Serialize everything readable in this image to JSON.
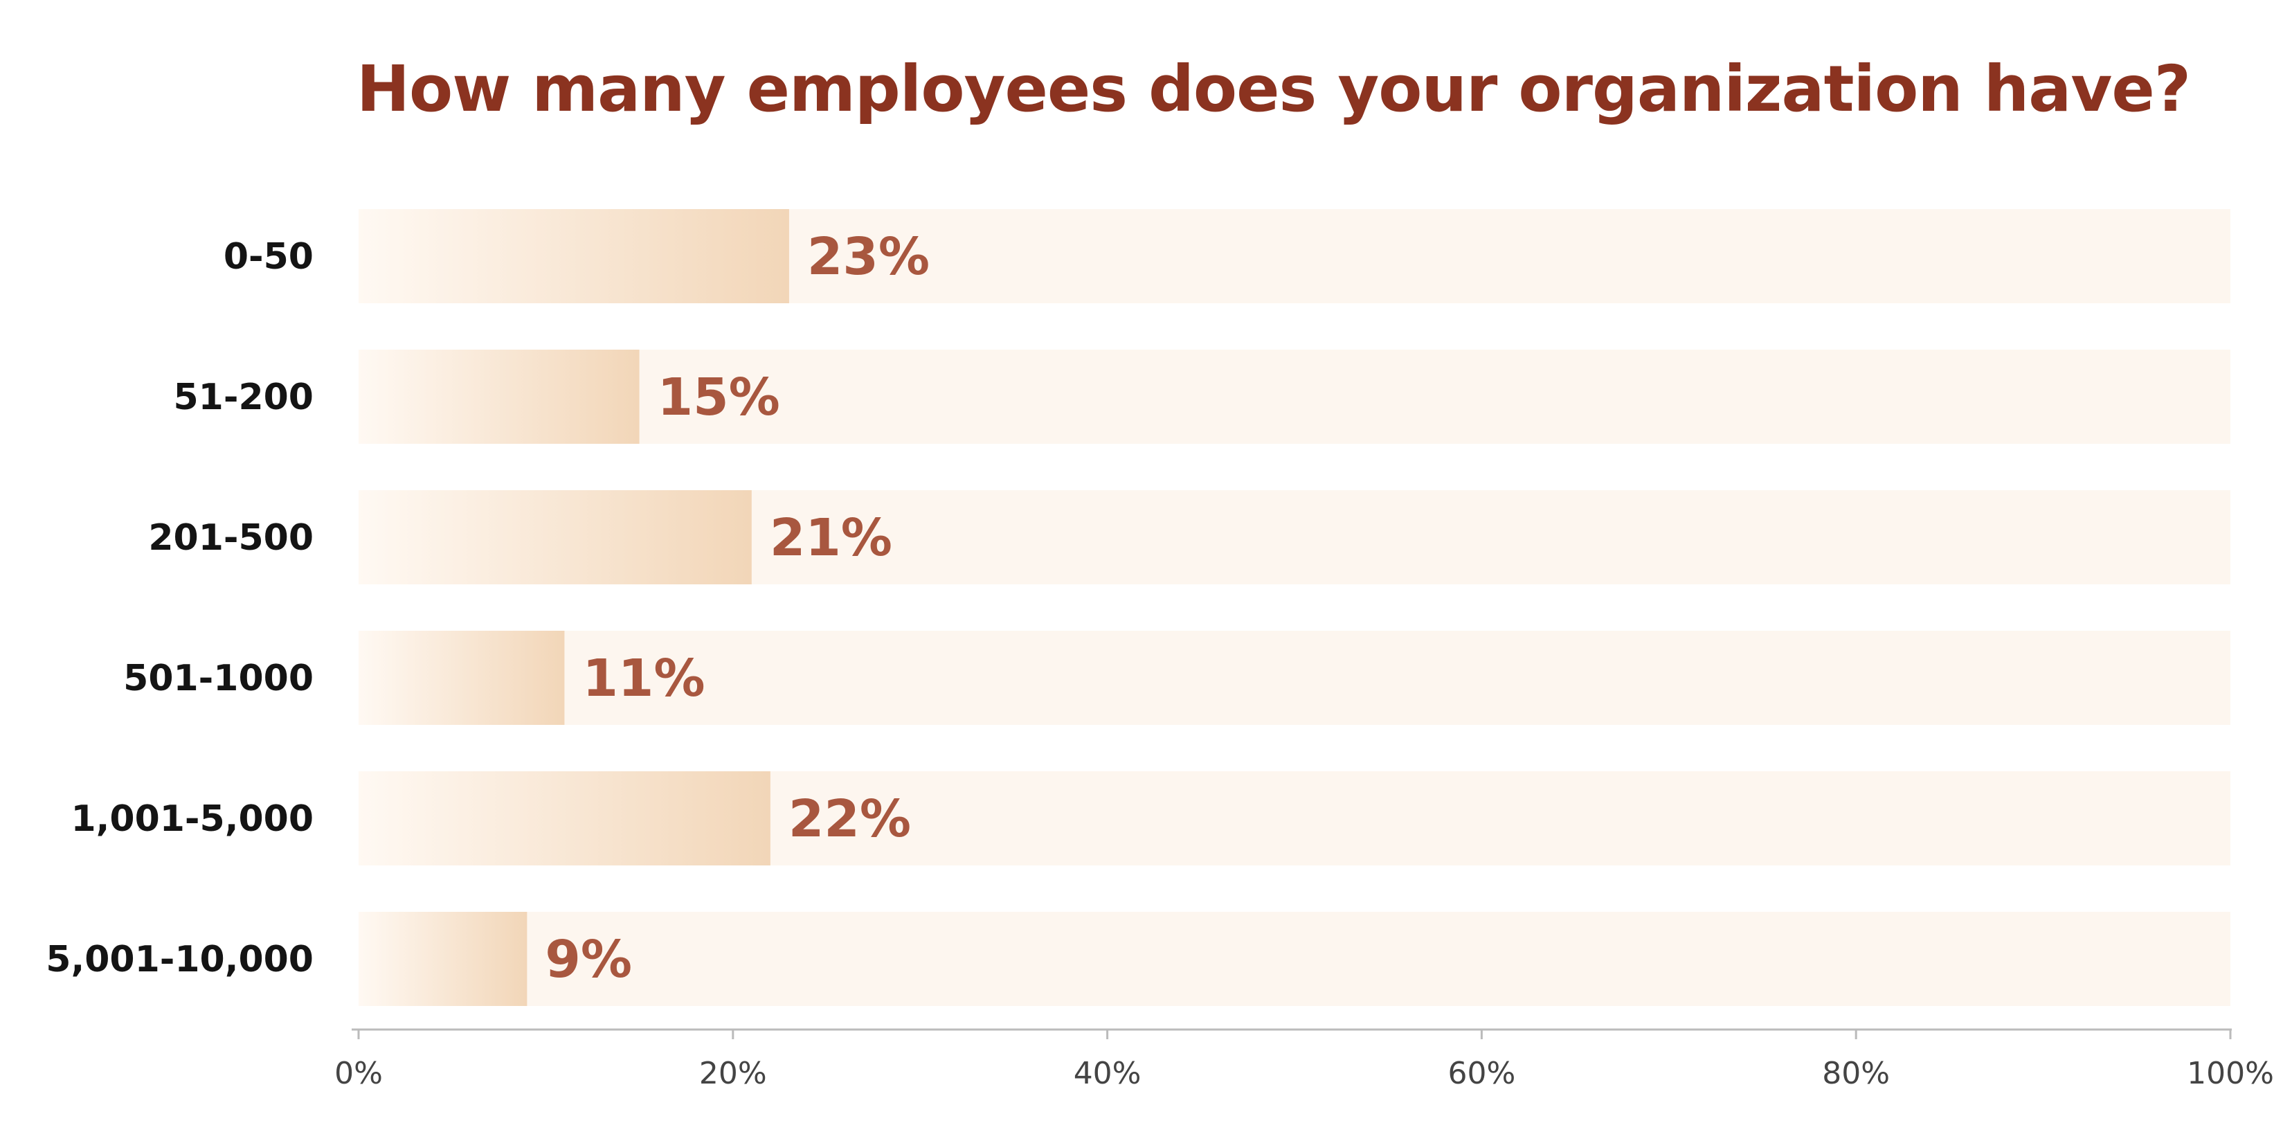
{
  "colors": {
    "title": "#8B3320",
    "value_label": "#A8573F",
    "track": "#FDF6EF",
    "bar_start": "#FFF9F3",
    "bar_end": "#F2D6B8",
    "axis": "#BBBBBB"
  },
  "chart_data": {
    "type": "bar",
    "orientation": "horizontal",
    "title": "How many employees does your organization have?",
    "xlabel": "",
    "ylabel": "",
    "categories": [
      "0-50",
      "51-200",
      "201-500",
      "501-1000",
      "1,001-5,000",
      "5,001-10,000"
    ],
    "values": [
      23,
      15,
      21,
      11,
      22,
      9
    ],
    "value_labels": [
      "23%",
      "15%",
      "21%",
      "11%",
      "22%",
      "9%"
    ],
    "xlim": [
      0,
      100
    ],
    "ticks": [
      0,
      20,
      40,
      60,
      80,
      100
    ],
    "tick_labels": [
      "0%",
      "20%",
      "40%",
      "60%",
      "80%",
      "100%"
    ],
    "grid": false,
    "legend": "none"
  }
}
